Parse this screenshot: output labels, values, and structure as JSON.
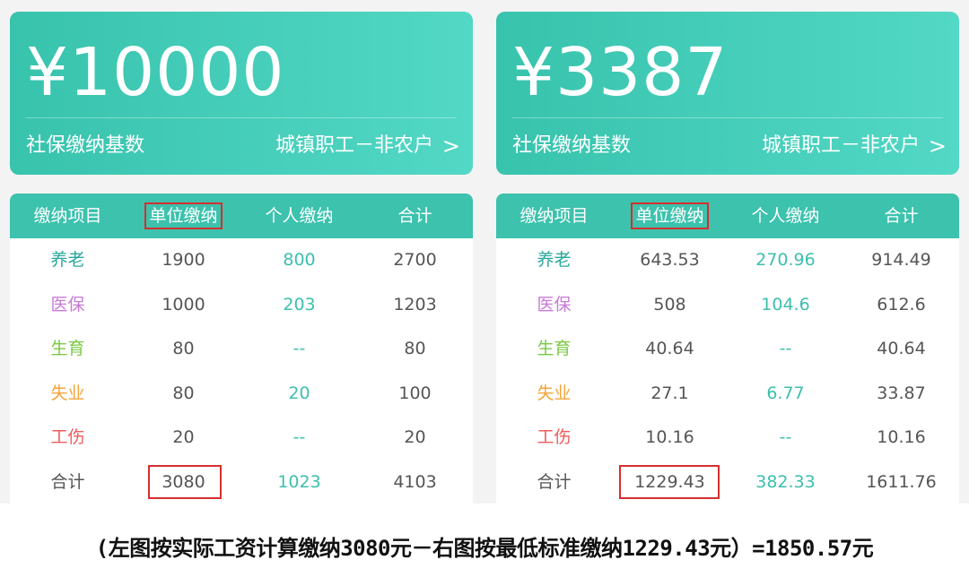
{
  "panels": [
    {
      "amount": "¥10000",
      "base_label": "社保缴纳基数",
      "category": "城镇职工－非农户",
      "chevron": ">",
      "headers": [
        "缴纳项目",
        "单位缴纳",
        "个人缴纳",
        "合计"
      ],
      "rows": [
        {
          "name": "养老",
          "color": "#2aa79b",
          "company": "1900",
          "personal": "800",
          "total": "2700"
        },
        {
          "name": "医保",
          "color": "#c77ad6",
          "company": "1000",
          "personal": "203",
          "total": "1203"
        },
        {
          "name": "生育",
          "color": "#7ac943",
          "company": "80",
          "personal": "--",
          "total": "80"
        },
        {
          "name": "失业",
          "color": "#f5a53a",
          "company": "80",
          "personal": "20",
          "total": "100"
        },
        {
          "name": "工伤",
          "color": "#ef5b5b",
          "company": "20",
          "personal": "--",
          "total": "20"
        },
        {
          "name": "合计",
          "color": "#555555",
          "company": "3080",
          "personal": "1023",
          "total": "4103"
        }
      ]
    },
    {
      "amount": "¥3387",
      "base_label": "社保缴纳基数",
      "category": "城镇职工－非农户",
      "chevron": ">",
      "headers": [
        "缴纳项目",
        "单位缴纳",
        "个人缴纳",
        "合计"
      ],
      "rows": [
        {
          "name": "养老",
          "color": "#2aa79b",
          "company": "643.53",
          "personal": "270.96",
          "total": "914.49"
        },
        {
          "name": "医保",
          "color": "#c77ad6",
          "company": "508",
          "personal": "104.6",
          "total": "612.6"
        },
        {
          "name": "生育",
          "color": "#7ac943",
          "company": "40.64",
          "personal": "--",
          "total": "40.64"
        },
        {
          "name": "失业",
          "color": "#f5a53a",
          "company": "27.1",
          "personal": "6.77",
          "total": "33.87"
        },
        {
          "name": "工伤",
          "color": "#ef5b5b",
          "company": "10.16",
          "personal": "--",
          "total": "10.16"
        },
        {
          "name": "合计",
          "color": "#555555",
          "company": "1229.43",
          "personal": "382.33",
          "total": "1611.76"
        }
      ]
    }
  ],
  "footnote": "(左图按实际工资计算缴纳3080元－右图按最低标准缴纳1229.43元）=1850.57元"
}
